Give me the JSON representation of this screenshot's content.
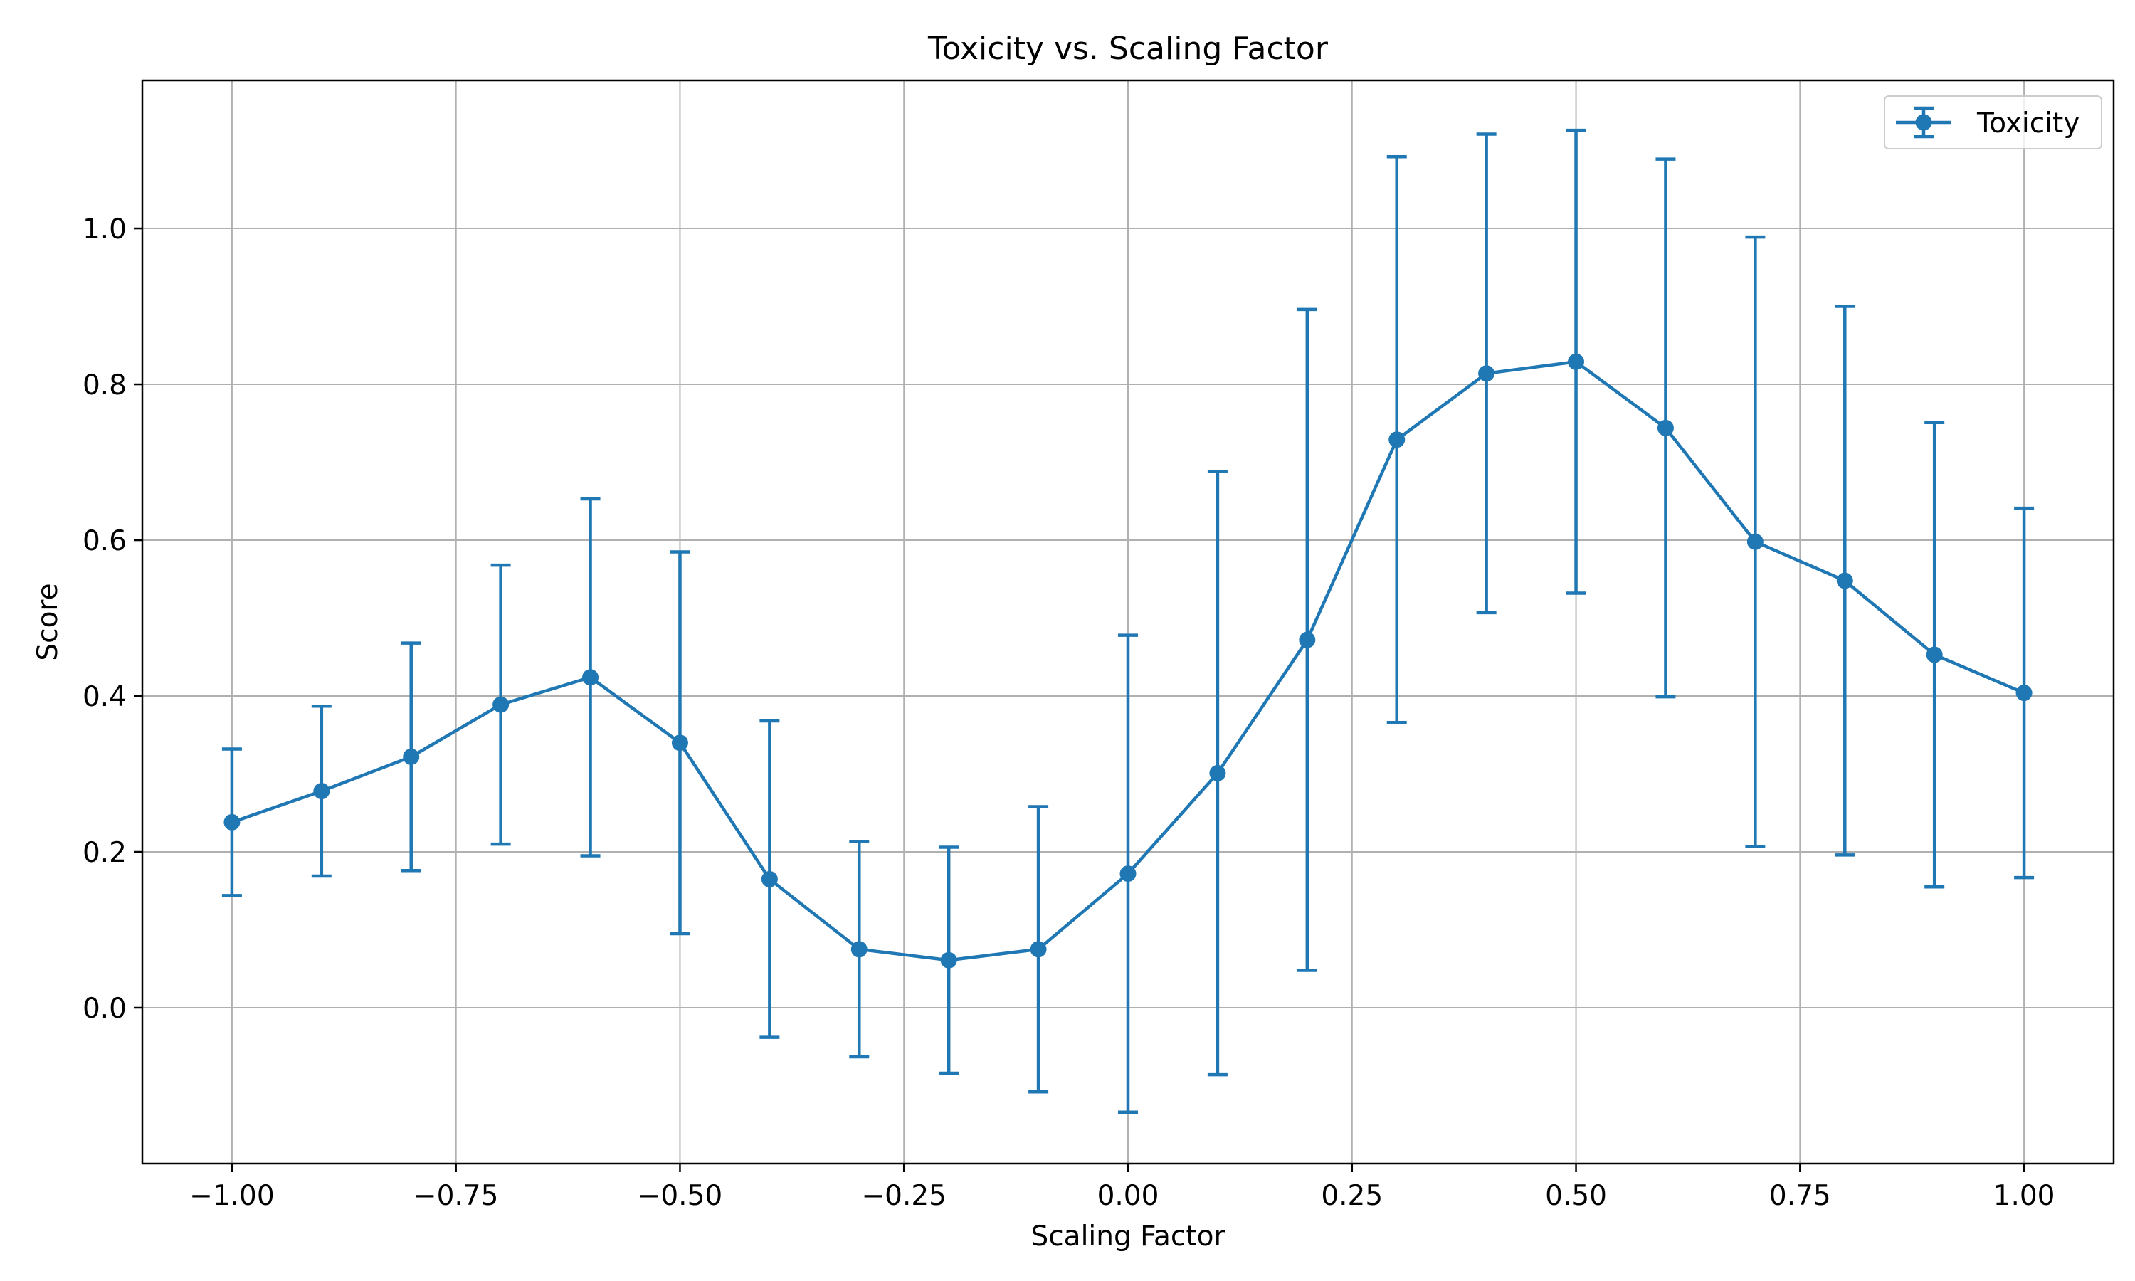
{
  "chart_data": {
    "type": "line",
    "title": "Toxicity vs. Scaling Factor",
    "xlabel": "Scaling Factor",
    "ylabel": "Score",
    "xlim": [
      -1.1,
      1.1
    ],
    "ylim": [
      -0.2,
      1.19
    ],
    "grid": true,
    "legend_position": "top-right",
    "color": "#1f77b4",
    "x_ticks": [
      {
        "value": -1.0,
        "label": "−1.00"
      },
      {
        "value": -0.75,
        "label": "−0.75"
      },
      {
        "value": -0.5,
        "label": "−0.50"
      },
      {
        "value": -0.25,
        "label": "−0.25"
      },
      {
        "value": 0.0,
        "label": "0.00"
      },
      {
        "value": 0.25,
        "label": "0.25"
      },
      {
        "value": 0.5,
        "label": "0.50"
      },
      {
        "value": 0.75,
        "label": "0.75"
      },
      {
        "value": 1.0,
        "label": "1.00"
      }
    ],
    "y_ticks": [
      {
        "value": 0.0,
        "label": "0.0"
      },
      {
        "value": 0.2,
        "label": "0.2"
      },
      {
        "value": 0.4,
        "label": "0.4"
      },
      {
        "value": 0.6,
        "label": "0.6"
      },
      {
        "value": 0.8,
        "label": "0.8"
      },
      {
        "value": 1.0,
        "label": "1.0"
      }
    ],
    "series": [
      {
        "name": "Toxicity",
        "x": [
          -1.0,
          -0.9,
          -0.8,
          -0.7,
          -0.6,
          -0.5,
          -0.4,
          -0.3,
          -0.2,
          -0.1,
          0.0,
          0.1,
          0.2,
          0.3,
          0.4,
          0.5,
          0.6,
          0.7,
          0.8,
          0.9,
          1.0
        ],
        "y": [
          0.238,
          0.278,
          0.322,
          0.389,
          0.424,
          0.34,
          0.165,
          0.075,
          0.061,
          0.075,
          0.172,
          0.301,
          0.472,
          0.729,
          0.814,
          0.829,
          0.744,
          0.598,
          0.548,
          0.453,
          0.404
        ],
        "error": [
          0.094,
          0.109,
          0.146,
          0.179,
          0.229,
          0.245,
          0.203,
          0.138,
          0.145,
          0.183,
          0.306,
          0.387,
          0.424,
          0.363,
          0.307,
          0.297,
          0.345,
          0.391,
          0.352,
          0.298,
          0.237
        ]
      }
    ]
  }
}
